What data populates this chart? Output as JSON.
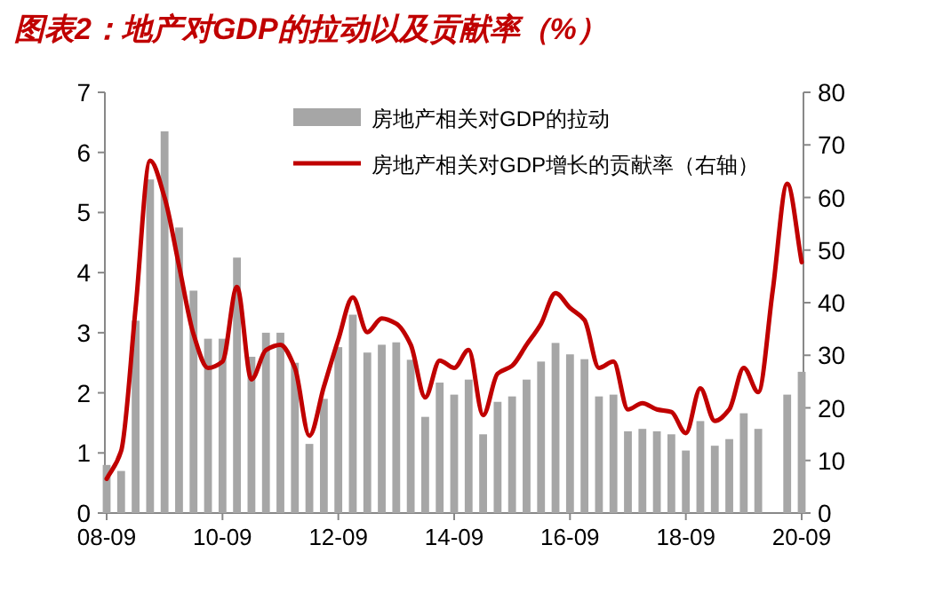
{
  "chart_data": {
    "type": "bar",
    "title": "图表2：地产对GDP的拉动以及贡献率（%）",
    "categories": [
      "08-09",
      null,
      null,
      null,
      null,
      null,
      null,
      null,
      "10-09",
      null,
      null,
      null,
      null,
      null,
      null,
      null,
      "12-09",
      null,
      null,
      null,
      null,
      null,
      null,
      null,
      "14-09",
      null,
      null,
      null,
      null,
      null,
      null,
      null,
      "16-09",
      null,
      null,
      null,
      null,
      null,
      null,
      null,
      "18-09",
      null,
      null,
      null,
      null,
      null,
      null,
      null,
      "20-09"
    ],
    "series": [
      {
        "name": "房地产相关对GDP的拉动",
        "color": "#a6a6a6",
        "values": [
          0.8,
          0.7,
          3.2,
          5.55,
          6.35,
          4.75,
          3.7,
          2.9,
          2.9,
          4.25,
          2.6,
          3.0,
          3.0,
          2.5,
          1.15,
          1.9,
          2.76,
          3.3,
          2.67,
          2.8,
          2.84,
          2.55,
          1.6,
          2.17,
          1.97,
          2.22,
          1.31,
          1.85,
          1.94,
          2.22,
          2.52,
          2.83,
          2.64,
          2.56,
          1.94,
          1.97,
          1.36,
          1.4,
          1.36,
          1.31,
          1.04,
          1.53,
          1.12,
          1.23,
          1.66,
          1.4,
          null,
          1.97,
          2.35
        ]
      },
      {
        "name": "房地产相关对GDP增长的贡献率（右轴）",
        "type": "line",
        "axis": "y2",
        "color": "#c00000",
        "values": [
          6.5,
          11.8,
          39,
          67,
          60,
          47,
          34,
          27.6,
          28.8,
          43,
          25.4,
          31,
          32,
          27.6,
          14.7,
          24,
          33,
          41,
          34.4,
          37,
          36,
          32,
          22,
          29,
          27.6,
          31,
          18.6,
          26.5,
          28,
          32,
          36,
          41.8,
          39,
          36.7,
          27.6,
          28.8,
          19.7,
          20.9,
          19.7,
          19.2,
          15.2,
          23.7,
          17.5,
          19.7,
          27.6,
          23,
          42.3,
          62.6,
          47.7
        ]
      }
    ],
    "ylim": [
      0,
      7
    ],
    "yticks": [
      0,
      1,
      2,
      3,
      4,
      5,
      6,
      7
    ],
    "y2lim": [
      0,
      80
    ],
    "y2ticks": [
      0,
      10,
      20,
      30,
      40,
      50,
      60,
      70,
      80
    ],
    "legend": "top"
  }
}
